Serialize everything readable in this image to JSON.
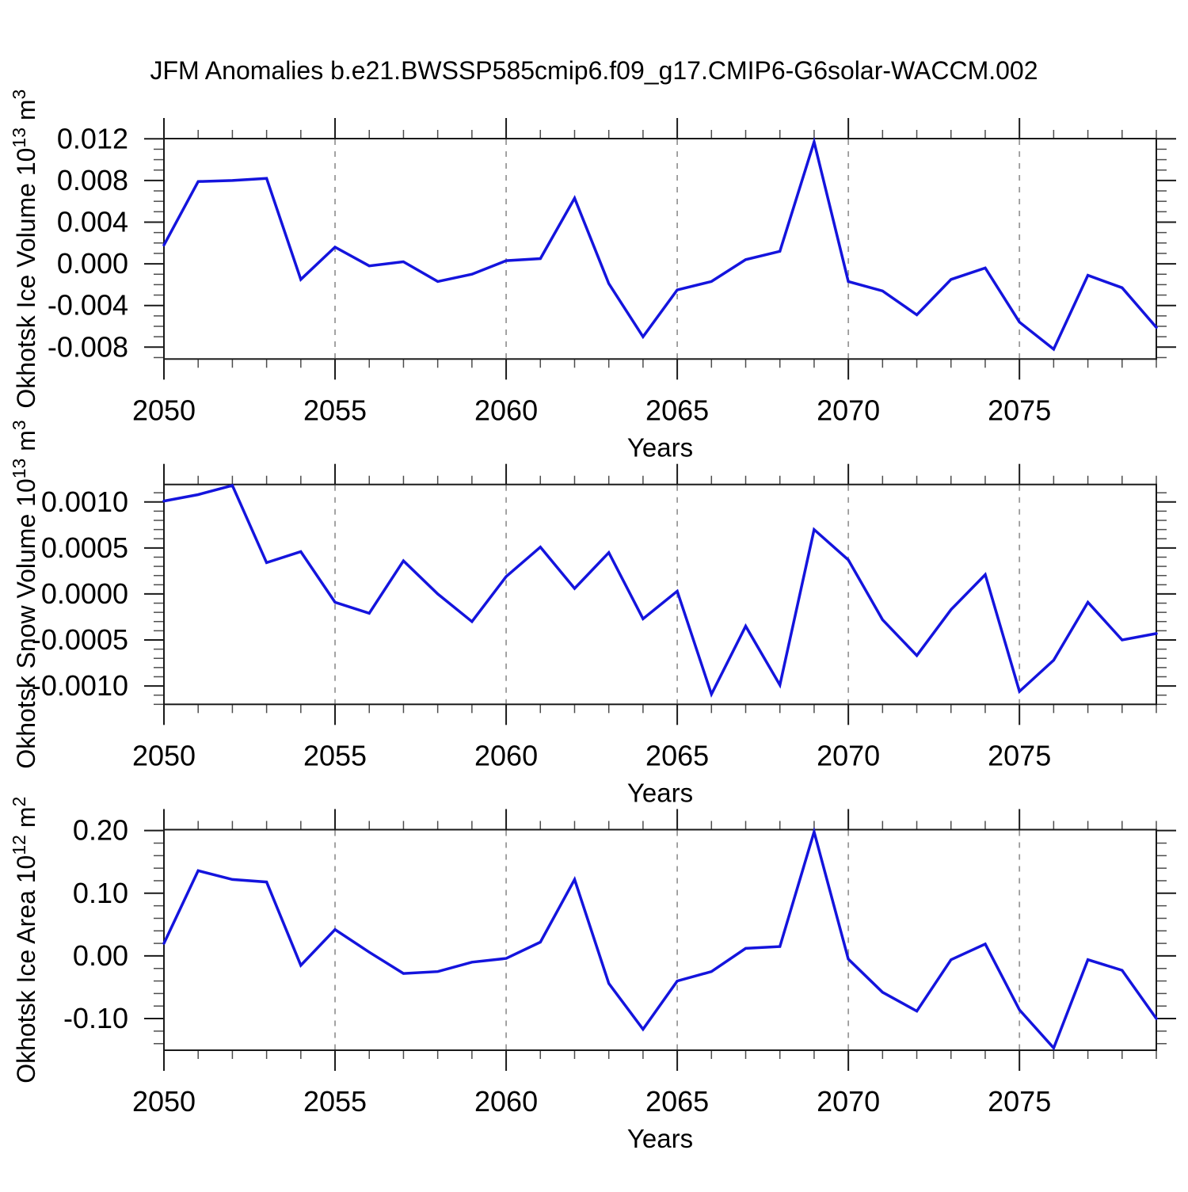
{
  "title": "JFM Anomalies b.e21.BWSSP585cmip6.f09_g17.CMIP6-G6solar-WACCM.002",
  "chart_data": {
    "type": "line",
    "xlabel": "Years",
    "x": [
      2050,
      2051,
      2052,
      2053,
      2054,
      2055,
      2056,
      2057,
      2058,
      2059,
      2060,
      2061,
      2062,
      2063,
      2064,
      2065,
      2066,
      2067,
      2068,
      2069,
      2070,
      2071,
      2072,
      2073,
      2074,
      2075,
      2076,
      2077,
      2078,
      2079
    ],
    "x_major_ticks": [
      2050,
      2055,
      2060,
      2065,
      2070,
      2075
    ],
    "x_gridlines": [
      2055,
      2060,
      2065,
      2070,
      2075
    ],
    "line_color": "#1414dd",
    "grid_color": "#999999",
    "axis_color": "#1a1a1a",
    "minor_tick_color": "#4d4d4d",
    "charts": [
      {
        "id": "okhotsk-ice-volume",
        "ylabel": {
          "prefix": "Okhotsk Ice Volume 10",
          "exp": "13",
          "unit": " m",
          "unit_exp": "3"
        },
        "ylim": [
          -0.00914,
          0.01202
        ],
        "y_major_ticks": [
          0.012,
          0.008,
          0.004,
          0.0,
          -0.004,
          -0.008
        ],
        "y_tick_labels": [
          "0.012",
          "0.008",
          "0.004",
          "0.000",
          "-0.004",
          "-0.008"
        ],
        "y_minor_step": 0.001,
        "values": [
          0.0018,
          0.0079,
          0.008,
          0.0082,
          -0.0015,
          0.0016,
          -0.0002,
          0.0002,
          -0.0017,
          -0.001,
          0.0003,
          0.0005,
          0.0063,
          -0.0019,
          -0.007,
          -0.0025,
          -0.0017,
          0.0004,
          0.0012,
          0.0117,
          -0.0017,
          -0.0026,
          -0.0049,
          -0.0015,
          -0.0004,
          -0.0056,
          -0.0082,
          -0.0011,
          -0.0023,
          -0.0061
        ]
      },
      {
        "id": "okhotsk-snow-volume",
        "ylabel": {
          "prefix": "Okhotsk Snow Volume 10",
          "exp": "13",
          "unit": " m",
          "unit_exp": "3"
        },
        "ylim": [
          -0.0012,
          0.00119
        ],
        "y_major_ticks": [
          0.001,
          0.0005,
          0.0,
          -0.0005,
          -0.001
        ],
        "y_tick_labels": [
          "0.0010",
          "0.0005",
          "0.0000",
          "-0.0005",
          "-0.0010"
        ],
        "y_minor_step": 0.0001,
        "values": [
          0.00101,
          0.00108,
          0.00118,
          0.00034,
          0.00046,
          -9e-05,
          -0.00021,
          0.00036,
          0.0,
          -0.0003,
          0.00019,
          0.00051,
          6e-05,
          0.00045,
          -0.00027,
          3e-05,
          -0.00109,
          -0.00035,
          -0.00099,
          0.0007,
          0.00037,
          -0.00028,
          -0.00067,
          -0.00017,
          0.00021,
          -0.00106,
          -0.00072,
          -9e-05,
          -0.0005,
          -0.00043
        ]
      },
      {
        "id": "okhotsk-ice-area",
        "ylabel": {
          "prefix": "Okhotsk Ice Area 10",
          "exp": "12",
          "unit": " m",
          "unit_exp": "2"
        },
        "ylim": [
          -0.1505,
          0.2015
        ],
        "y_major_ticks": [
          0.2,
          0.1,
          0.0,
          -0.1
        ],
        "y_tick_labels": [
          "0.20",
          "0.10",
          "0.00",
          "-0.10"
        ],
        "y_minor_step": 0.02,
        "values": [
          0.02,
          0.136,
          0.122,
          0.118,
          -0.015,
          0.042,
          0.006,
          -0.028,
          -0.025,
          -0.01,
          -0.004,
          0.022,
          0.122,
          -0.044,
          -0.117,
          -0.04,
          -0.025,
          0.012,
          0.015,
          0.198,
          -0.005,
          -0.058,
          -0.088,
          -0.006,
          0.019,
          -0.086,
          -0.147,
          -0.006,
          -0.023,
          -0.1
        ]
      }
    ]
  }
}
